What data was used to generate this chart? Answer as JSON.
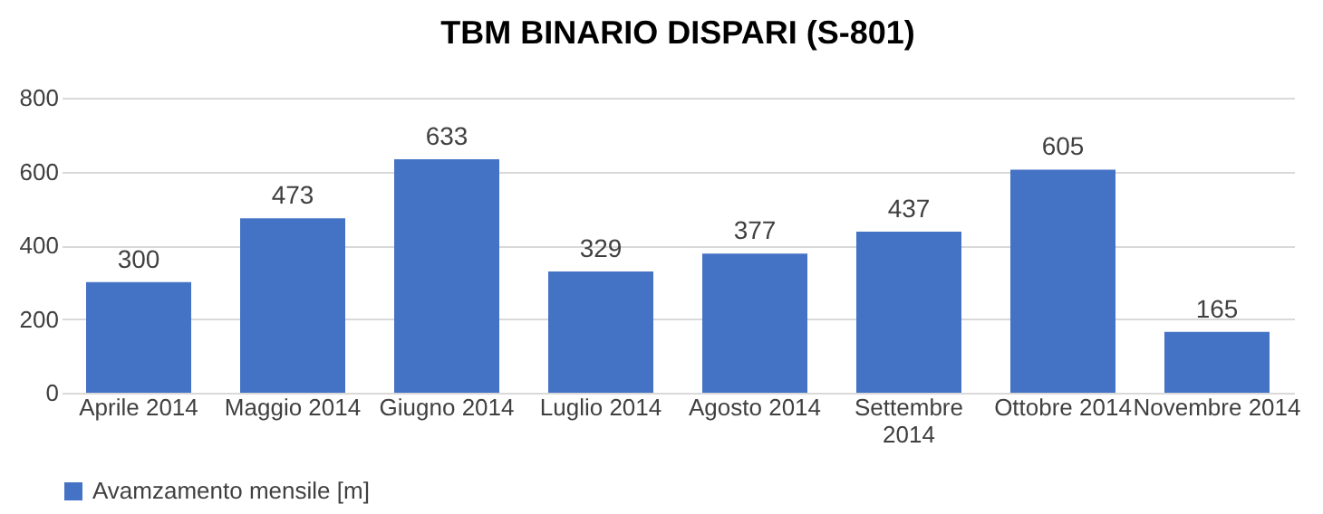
{
  "chart_data": {
    "type": "bar",
    "title": "TBM BINARIO DISPARI (S-801)",
    "categories": [
      "Aprile 2014",
      "Maggio 2014",
      "Giugno 2014",
      "Luglio 2014",
      "Agosto 2014",
      "Settembre 2014",
      "Ottobre 2014",
      "Novembre 2014"
    ],
    "series": [
      {
        "name": "Avamzamento mensile [m]",
        "color": "#4472c4",
        "values": [
          300,
          473,
          633,
          329,
          377,
          437,
          605,
          165
        ]
      }
    ],
    "ylim": [
      0,
      800
    ],
    "yticks": [
      0,
      200,
      400,
      600,
      800
    ],
    "grid": "y",
    "legend": "bottom",
    "data_labels": true
  }
}
